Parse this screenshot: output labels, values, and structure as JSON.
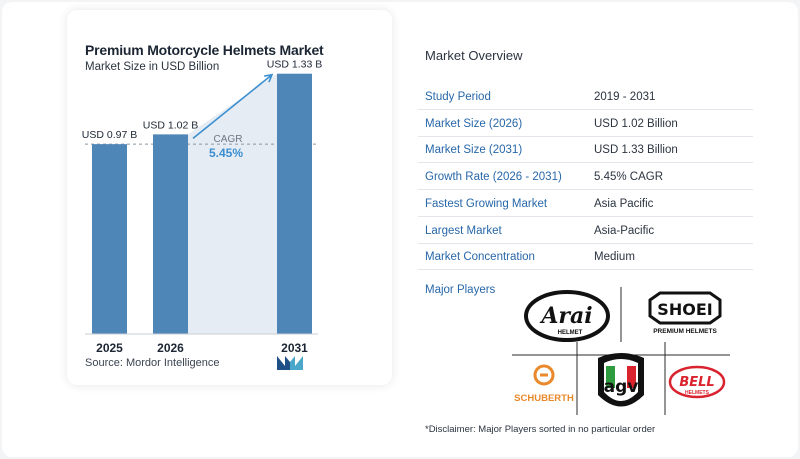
{
  "chart_data": {
    "type": "bar",
    "title": "Premium Motorcycle Helmets Market",
    "subtitle": "Market Size in USD Billion",
    "categories": [
      "2025",
      "2026",
      "2031"
    ],
    "values": [
      0.97,
      1.02,
      1.33
    ],
    "value_labels": [
      "USD 0.97 B",
      "USD 1.02 B",
      "USD 1.33 B"
    ],
    "ylim": [
      0,
      1.4
    ],
    "grid": false,
    "reference_line": 0.97,
    "cagr_label": "CAGR",
    "cagr_value": "5.45%",
    "colors": {
      "bar": "#4f86b8",
      "area": "#e6ecf3",
      "arrow": "#3b8fd0",
      "cagr_value": "#3b8fd0"
    }
  },
  "source": "Source:  Mordor Intelligence",
  "overview": {
    "title": "Market Overview",
    "rows": [
      {
        "key": "Study Period",
        "value": "2019 - 2031"
      },
      {
        "key": "Market Size (2026)",
        "value": "USD 1.02 Billion"
      },
      {
        "key": "Market Size (2031)",
        "value": "USD 1.33 Billion"
      },
      {
        "key": "Growth Rate (2026 - 2031)",
        "value": "5.45% CAGR"
      },
      {
        "key": "Fastest Growing Market",
        "value": "Asia Pacific"
      },
      {
        "key": "Largest Market",
        "value": "Asia-Pacific"
      },
      {
        "key": "Market Concentration",
        "value": "Medium"
      }
    ],
    "players_label": "Major Players",
    "players": {
      "arai": {
        "name": "Arai",
        "sub": "HELMET"
      },
      "shoei": {
        "name": "SHOEI",
        "sub": "PREMIUM HELMETS"
      },
      "schuberth": {
        "name": "SCHUBERTH"
      },
      "agv": {
        "name": "agv"
      },
      "bell": {
        "name": "BELL",
        "sub": "HELMETS"
      }
    },
    "disclaimer": "*Disclaimer: Major Players sorted in no particular order"
  }
}
